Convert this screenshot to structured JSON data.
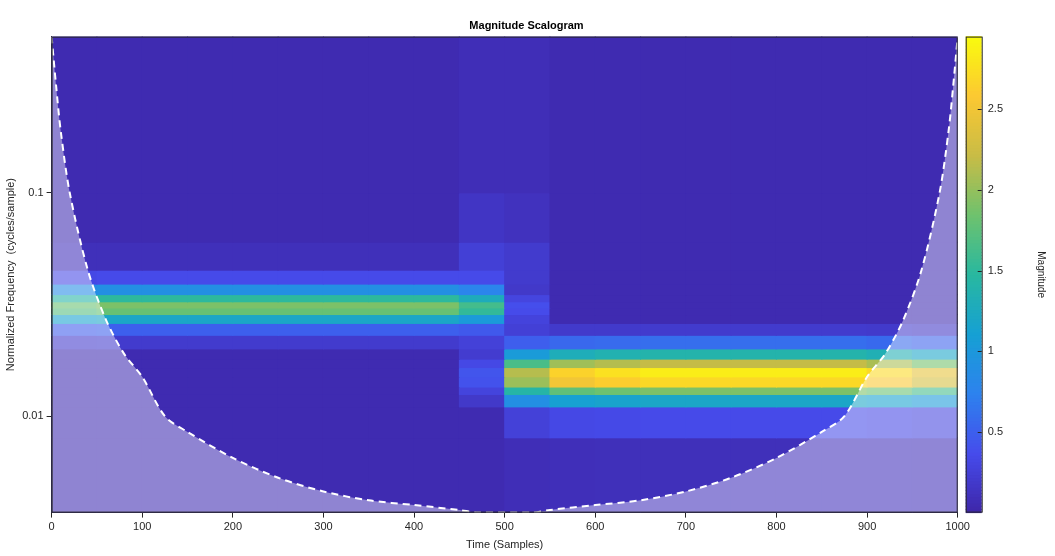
{
  "chart_data": {
    "type": "heatmap",
    "title": "Magnitude Scalogram",
    "x_label": "Time (Samples)",
    "y_label": "Normalized Frequency  (cycles/sample)",
    "xlim": [
      0,
      1000
    ],
    "xticks": [
      0,
      100,
      200,
      300,
      400,
      500,
      600,
      700,
      800,
      900,
      1000
    ],
    "ylim": [
      0.0037,
      0.5
    ],
    "yticks": [
      0.01,
      0.1
    ],
    "log": "y",
    "grid": false,
    "x_edges": [
      0,
      50,
      100,
      150,
      200,
      250,
      300,
      350,
      400,
      450,
      500,
      550,
      600,
      650,
      700,
      750,
      800,
      850,
      900,
      950,
      1000
    ],
    "y_edges": [
      0.0037,
      0.008,
      0.011,
      0.0125,
      0.0135,
      0.015,
      0.0165,
      0.018,
      0.02,
      0.023,
      0.026,
      0.0285,
      0.0305,
      0.0325,
      0.035,
      0.039,
      0.045,
      0.06,
      0.1,
      0.5
    ],
    "cells": [
      [
        0.05,
        0.05,
        0.05,
        0.05,
        0.05,
        0.05,
        0.05,
        0.05,
        0.05,
        0.05,
        0.08,
        0.09,
        0.1,
        0.1,
        0.1,
        0.1,
        0.1,
        0.1,
        0.1,
        0.09
      ],
      [
        0.05,
        0.05,
        0.05,
        0.05,
        0.05,
        0.05,
        0.05,
        0.05,
        0.05,
        0.05,
        0.26,
        0.33,
        0.34,
        0.35,
        0.35,
        0.35,
        0.35,
        0.35,
        0.33,
        0.3
      ],
      [
        0.05,
        0.05,
        0.05,
        0.05,
        0.05,
        0.05,
        0.05,
        0.05,
        0.05,
        0.18,
        0.9,
        1.12,
        1.16,
        1.2,
        1.2,
        1.2,
        1.2,
        1.2,
        1.14,
        1.02
      ],
      [
        0.05,
        0.05,
        0.05,
        0.05,
        0.05,
        0.05,
        0.05,
        0.05,
        0.05,
        0.29,
        1.43,
        1.77,
        1.84,
        1.9,
        1.9,
        1.9,
        1.9,
        1.9,
        1.81,
        1.62
      ],
      [
        0.05,
        0.05,
        0.05,
        0.05,
        0.05,
        0.05,
        0.05,
        0.05,
        0.05,
        0.41,
        2.03,
        2.51,
        2.62,
        2.7,
        2.7,
        2.7,
        2.7,
        2.7,
        2.57,
        2.3
      ],
      [
        0.05,
        0.05,
        0.05,
        0.05,
        0.05,
        0.05,
        0.05,
        0.05,
        0.05,
        0.43,
        2.14,
        2.65,
        2.76,
        2.85,
        2.85,
        2.85,
        2.85,
        2.85,
        2.71,
        2.42
      ],
      [
        0.05,
        0.05,
        0.05,
        0.05,
        0.05,
        0.05,
        0.05,
        0.05,
        0.05,
        0.33,
        1.65,
        2.05,
        2.13,
        2.2,
        2.2,
        2.2,
        2.2,
        2.2,
        2.09,
        1.87
      ],
      [
        0.05,
        0.05,
        0.05,
        0.05,
        0.05,
        0.05,
        0.05,
        0.05,
        0.05,
        0.21,
        1.05,
        1.3,
        1.36,
        1.4,
        1.4,
        1.4,
        1.4,
        1.4,
        1.33,
        1.19
      ],
      [
        0.19,
        0.2,
        0.2,
        0.2,
        0.2,
        0.2,
        0.2,
        0.2,
        0.2,
        0.26,
        0.49,
        0.56,
        0.58,
        0.6,
        0.6,
        0.6,
        0.6,
        0.6,
        0.57,
        0.51
      ],
      [
        0.48,
        0.5,
        0.5,
        0.5,
        0.5,
        0.5,
        0.5,
        0.5,
        0.5,
        0.46,
        0.25,
        0.19,
        0.19,
        0.2,
        0.2,
        0.2,
        0.2,
        0.2,
        0.19,
        0.17
      ],
      [
        1.14,
        1.2,
        1.2,
        1.2,
        1.2,
        1.2,
        1.2,
        1.2,
        1.2,
        1.03,
        0.28,
        0.05,
        0.05,
        0.05,
        0.05,
        0.05,
        0.05,
        0.05,
        0.05,
        0.05
      ],
      [
        1.71,
        1.8,
        1.8,
        1.8,
        1.8,
        1.8,
        1.8,
        1.8,
        1.8,
        1.53,
        0.36,
        0.05,
        0.05,
        0.05,
        0.05,
        0.05,
        0.05,
        0.05,
        0.05,
        0.05
      ],
      [
        1.81,
        1.9,
        1.9,
        1.9,
        1.9,
        1.9,
        1.9,
        1.9,
        1.9,
        1.62,
        0.38,
        0.05,
        0.05,
        0.05,
        0.05,
        0.05,
        0.05,
        0.05,
        0.05,
        0.05
      ],
      [
        1.43,
        1.5,
        1.5,
        1.5,
        1.5,
        1.5,
        1.5,
        1.5,
        1.5,
        1.28,
        0.3,
        0.05,
        0.05,
        0.05,
        0.05,
        0.05,
        0.05,
        0.05,
        0.05,
        0.05
      ],
      [
        0.86,
        0.9,
        0.9,
        0.9,
        0.9,
        0.9,
        0.9,
        0.9,
        0.9,
        0.77,
        0.18,
        0.05,
        0.05,
        0.05,
        0.05,
        0.05,
        0.05,
        0.05,
        0.05,
        0.05
      ],
      [
        0.33,
        0.35,
        0.35,
        0.35,
        0.35,
        0.35,
        0.35,
        0.35,
        0.35,
        0.35,
        0.2,
        0.05,
        0.05,
        0.05,
        0.05,
        0.05,
        0.05,
        0.05,
        0.05,
        0.05
      ],
      [
        0.1,
        0.1,
        0.1,
        0.1,
        0.1,
        0.1,
        0.1,
        0.1,
        0.1,
        0.25,
        0.2,
        0.05,
        0.05,
        0.05,
        0.05,
        0.05,
        0.05,
        0.05,
        0.05,
        0.05
      ],
      [
        0.05,
        0.05,
        0.05,
        0.05,
        0.05,
        0.05,
        0.05,
        0.05,
        0.05,
        0.15,
        0.12,
        0.05,
        0.05,
        0.05,
        0.05,
        0.05,
        0.05,
        0.05,
        0.05,
        0.05
      ],
      [
        0.05,
        0.05,
        0.05,
        0.05,
        0.05,
        0.05,
        0.05,
        0.05,
        0.05,
        0.08,
        0.08,
        0.05,
        0.05,
        0.05,
        0.05,
        0.05,
        0.05,
        0.05,
        0.05,
        0.05
      ]
    ],
    "colorbar": {
      "label": "Magnitude",
      "range": [
        0,
        2.95
      ],
      "ticks": [
        0.5,
        1,
        1.5,
        2,
        2.5
      ]
    },
    "series": [
      {
        "type": "line",
        "line_style": "dashed",
        "color": "#ffffff",
        "x": [
          0,
          5,
          10,
          20,
          40,
          60,
          80,
          100,
          125,
          150,
          200,
          250,
          300,
          350,
          400,
          450,
          470,
          530,
          550,
          600,
          650,
          700,
          750,
          800,
          850,
          875,
          900,
          920,
          940,
          960,
          980,
          990,
          995,
          1000
        ],
        "values": [
          0.5,
          0.3,
          0.19,
          0.1,
          0.045,
          0.027,
          0.019,
          0.015,
          0.01,
          0.0085,
          0.0065,
          0.0053,
          0.0046,
          0.0042,
          0.004,
          0.0038,
          0.0037,
          0.0037,
          0.0038,
          0.004,
          0.0042,
          0.0046,
          0.0053,
          0.0065,
          0.0085,
          0.01,
          0.015,
          0.019,
          0.027,
          0.045,
          0.1,
          0.19,
          0.3,
          0.5
        ]
      }
    ]
  }
}
